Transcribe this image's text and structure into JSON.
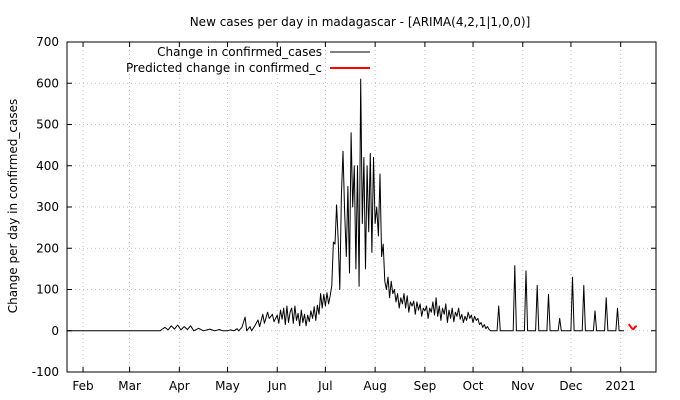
{
  "chart_data": {
    "type": "line",
    "title": "New cases per day in madagascar -  [ARIMA(4,2,1|1,0,0)]",
    "xlabel": "",
    "ylabel": "Change per day in confirmed_cases",
    "ylim": [
      -100,
      700
    ],
    "yticks": [
      -100,
      0,
      100,
      200,
      300,
      400,
      500,
      600,
      700
    ],
    "xlim": [
      "2020-01-22",
      "2021-01-23"
    ],
    "xticks": [
      {
        "date": "2020-02-01",
        "label": "Feb"
      },
      {
        "date": "2020-03-01",
        "label": "Mar"
      },
      {
        "date": "2020-04-01",
        "label": "Apr"
      },
      {
        "date": "2020-05-01",
        "label": "May"
      },
      {
        "date": "2020-06-01",
        "label": "Jun"
      },
      {
        "date": "2020-07-01",
        "label": "Jul"
      },
      {
        "date": "2020-08-01",
        "label": "Aug"
      },
      {
        "date": "2020-09-01",
        "label": "Sep"
      },
      {
        "date": "2020-10-01",
        "label": "Oct"
      },
      {
        "date": "2020-11-01",
        "label": "Nov"
      },
      {
        "date": "2020-12-01",
        "label": "Dec"
      },
      {
        "date": "2021-01-01",
        "label": "2021"
      }
    ],
    "grid": true,
    "legend_position": "top-left",
    "series": [
      {
        "name": "Change in confirmed_cases",
        "color": "#000000",
        "points": [
          [
            "2020-01-22",
            0
          ],
          [
            "2020-03-20",
            0
          ],
          [
            "2020-03-21",
            3
          ],
          [
            "2020-03-23",
            8
          ],
          [
            "2020-03-25",
            2
          ],
          [
            "2020-03-27",
            12
          ],
          [
            "2020-03-29",
            4
          ],
          [
            "2020-03-31",
            14
          ],
          [
            "2020-04-02",
            2
          ],
          [
            "2020-04-04",
            10
          ],
          [
            "2020-04-06",
            3
          ],
          [
            "2020-04-08",
            12
          ],
          [
            "2020-04-10",
            0
          ],
          [
            "2020-04-13",
            6
          ],
          [
            "2020-04-16",
            0
          ],
          [
            "2020-04-20",
            4
          ],
          [
            "2020-04-23",
            0
          ],
          [
            "2020-04-26",
            3
          ],
          [
            "2020-04-28",
            0
          ],
          [
            "2020-05-01",
            0
          ],
          [
            "2020-05-03",
            2
          ],
          [
            "2020-05-05",
            0
          ],
          [
            "2020-05-07",
            5
          ],
          [
            "2020-05-08",
            0
          ],
          [
            "2020-05-10",
            8
          ],
          [
            "2020-05-12",
            33
          ],
          [
            "2020-05-13",
            0
          ],
          [
            "2020-05-15",
            10
          ],
          [
            "2020-05-16",
            0
          ],
          [
            "2020-05-18",
            12
          ],
          [
            "2020-05-20",
            26
          ],
          [
            "2020-05-21",
            10
          ],
          [
            "2020-05-23",
            40
          ],
          [
            "2020-05-24",
            18
          ],
          [
            "2020-05-26",
            45
          ],
          [
            "2020-05-27",
            30
          ],
          [
            "2020-05-29",
            40
          ],
          [
            "2020-05-30",
            22
          ],
          [
            "2020-06-01",
            38
          ],
          [
            "2020-06-02",
            18
          ],
          [
            "2020-06-03",
            50
          ],
          [
            "2020-06-04",
            28
          ],
          [
            "2020-06-05",
            55
          ],
          [
            "2020-06-06",
            15
          ],
          [
            "2020-06-07",
            60
          ],
          [
            "2020-06-08",
            20
          ],
          [
            "2020-06-09",
            45
          ],
          [
            "2020-06-10",
            55
          ],
          [
            "2020-06-11",
            18
          ],
          [
            "2020-06-12",
            60
          ],
          [
            "2020-06-13",
            25
          ],
          [
            "2020-06-14",
            42
          ],
          [
            "2020-06-15",
            12
          ],
          [
            "2020-06-16",
            50
          ],
          [
            "2020-06-17",
            20
          ],
          [
            "2020-06-18",
            40
          ],
          [
            "2020-06-19",
            12
          ],
          [
            "2020-06-20",
            38
          ],
          [
            "2020-06-21",
            22
          ],
          [
            "2020-06-22",
            48
          ],
          [
            "2020-06-23",
            30
          ],
          [
            "2020-06-24",
            58
          ],
          [
            "2020-06-25",
            25
          ],
          [
            "2020-06-26",
            62
          ],
          [
            "2020-06-27",
            40
          ],
          [
            "2020-06-28",
            90
          ],
          [
            "2020-06-29",
            55
          ],
          [
            "2020-06-30",
            88
          ],
          [
            "2020-07-01",
            60
          ],
          [
            "2020-07-02",
            92
          ],
          [
            "2020-07-03",
            65
          ],
          [
            "2020-07-04",
            85
          ],
          [
            "2020-07-05",
            110
          ],
          [
            "2020-07-06",
            215
          ],
          [
            "2020-07-07",
            210
          ],
          [
            "2020-07-08",
            305
          ],
          [
            "2020-07-09",
            220
          ],
          [
            "2020-07-10",
            100
          ],
          [
            "2020-07-11",
            330
          ],
          [
            "2020-07-12",
            435
          ],
          [
            "2020-07-13",
            290
          ],
          [
            "2020-07-14",
            180
          ],
          [
            "2020-07-15",
            350
          ],
          [
            "2020-07-16",
            140
          ],
          [
            "2020-07-17",
            480
          ],
          [
            "2020-07-18",
            300
          ],
          [
            "2020-07-19",
            400
          ],
          [
            "2020-07-20",
            150
          ],
          [
            "2020-07-21",
            400
          ],
          [
            "2020-07-22",
            108
          ],
          [
            "2020-07-23",
            610
          ],
          [
            "2020-07-24",
            260
          ],
          [
            "2020-07-25",
            420
          ],
          [
            "2020-07-26",
            150
          ],
          [
            "2020-07-27",
            400
          ],
          [
            "2020-07-28",
            240
          ],
          [
            "2020-07-29",
            430
          ],
          [
            "2020-07-30",
            190
          ],
          [
            "2020-07-31",
            420
          ],
          [
            "2020-08-01",
            260
          ],
          [
            "2020-08-02",
            300
          ],
          [
            "2020-08-03",
            230
          ],
          [
            "2020-08-04",
            380
          ],
          [
            "2020-08-05",
            180
          ],
          [
            "2020-08-06",
            210
          ],
          [
            "2020-08-07",
            120
          ],
          [
            "2020-08-08",
            100
          ],
          [
            "2020-08-09",
            130
          ],
          [
            "2020-08-10",
            80
          ],
          [
            "2020-08-11",
            120
          ],
          [
            "2020-08-12",
            90
          ],
          [
            "2020-08-13",
            100
          ],
          [
            "2020-08-14",
            70
          ],
          [
            "2020-08-15",
            90
          ],
          [
            "2020-08-16",
            55
          ],
          [
            "2020-08-17",
            80
          ],
          [
            "2020-08-18",
            65
          ],
          [
            "2020-08-19",
            90
          ],
          [
            "2020-08-20",
            55
          ],
          [
            "2020-08-21",
            85
          ],
          [
            "2020-08-22",
            45
          ],
          [
            "2020-08-23",
            70
          ],
          [
            "2020-08-24",
            60
          ],
          [
            "2020-08-25",
            72
          ],
          [
            "2020-08-26",
            40
          ],
          [
            "2020-08-27",
            70
          ],
          [
            "2020-08-28",
            50
          ],
          [
            "2020-08-29",
            65
          ],
          [
            "2020-08-30",
            35
          ],
          [
            "2020-08-31",
            55
          ],
          [
            "2020-09-01",
            48
          ],
          [
            "2020-09-02",
            60
          ],
          [
            "2020-09-03",
            30
          ],
          [
            "2020-09-04",
            55
          ],
          [
            "2020-09-05",
            45
          ],
          [
            "2020-09-06",
            70
          ],
          [
            "2020-09-07",
            38
          ],
          [
            "2020-09-08",
            80
          ],
          [
            "2020-09-09",
            35
          ],
          [
            "2020-09-10",
            60
          ],
          [
            "2020-09-11",
            25
          ],
          [
            "2020-09-12",
            55
          ],
          [
            "2020-09-13",
            40
          ],
          [
            "2020-09-14",
            65
          ],
          [
            "2020-09-15",
            20
          ],
          [
            "2020-09-16",
            50
          ],
          [
            "2020-09-17",
            30
          ],
          [
            "2020-09-18",
            55
          ],
          [
            "2020-09-19",
            22
          ],
          [
            "2020-09-20",
            45
          ],
          [
            "2020-09-21",
            35
          ],
          [
            "2020-09-22",
            55
          ],
          [
            "2020-09-23",
            28
          ],
          [
            "2020-09-24",
            40
          ],
          [
            "2020-09-25",
            20
          ],
          [
            "2020-09-26",
            35
          ],
          [
            "2020-09-27",
            25
          ],
          [
            "2020-09-28",
            45
          ],
          [
            "2020-09-29",
            30
          ],
          [
            "2020-09-30",
            38
          ],
          [
            "2020-10-01",
            20
          ],
          [
            "2020-10-02",
            35
          ],
          [
            "2020-10-03",
            25
          ],
          [
            "2020-10-04",
            30
          ],
          [
            "2020-10-05",
            15
          ],
          [
            "2020-10-06",
            20
          ],
          [
            "2020-10-07",
            8
          ],
          [
            "2020-10-08",
            15
          ],
          [
            "2020-10-09",
            5
          ],
          [
            "2020-10-10",
            10
          ],
          [
            "2020-10-11",
            3
          ],
          [
            "2020-10-12",
            0
          ],
          [
            "2020-10-16",
            0
          ],
          [
            "2020-10-17",
            60
          ],
          [
            "2020-10-18",
            0
          ],
          [
            "2020-10-26",
            0
          ],
          [
            "2020-10-27",
            158
          ],
          [
            "2020-10-28",
            0
          ],
          [
            "2020-11-02",
            0
          ],
          [
            "2020-11-03",
            145
          ],
          [
            "2020-11-04",
            0
          ],
          [
            "2020-11-09",
            0
          ],
          [
            "2020-11-10",
            110
          ],
          [
            "2020-11-11",
            0
          ],
          [
            "2020-11-16",
            0
          ],
          [
            "2020-11-17",
            88
          ],
          [
            "2020-11-18",
            0
          ],
          [
            "2020-11-23",
            0
          ],
          [
            "2020-11-24",
            30
          ],
          [
            "2020-11-25",
            0
          ],
          [
            "2020-12-01",
            0
          ],
          [
            "2020-12-02",
            130
          ],
          [
            "2020-12-03",
            0
          ],
          [
            "2020-12-08",
            0
          ],
          [
            "2020-12-09",
            110
          ],
          [
            "2020-12-10",
            0
          ],
          [
            "2020-12-15",
            0
          ],
          [
            "2020-12-16",
            48
          ],
          [
            "2020-12-17",
            0
          ],
          [
            "2020-12-22",
            0
          ],
          [
            "2020-12-23",
            80
          ],
          [
            "2020-12-24",
            0
          ],
          [
            "2020-12-29",
            0
          ],
          [
            "2020-12-30",
            55
          ],
          [
            "2020-12-31",
            0
          ],
          [
            "2021-01-03",
            0
          ]
        ]
      },
      {
        "name": "Predicted change in confirmed_c",
        "color": "#ff0000",
        "points": [
          [
            "2021-01-06",
            16
          ],
          [
            "2021-01-07",
            11
          ],
          [
            "2021-01-08",
            6
          ],
          [
            "2021-01-09",
            4
          ],
          [
            "2021-01-10",
            9
          ],
          [
            "2021-01-11",
            12
          ]
        ]
      }
    ]
  }
}
